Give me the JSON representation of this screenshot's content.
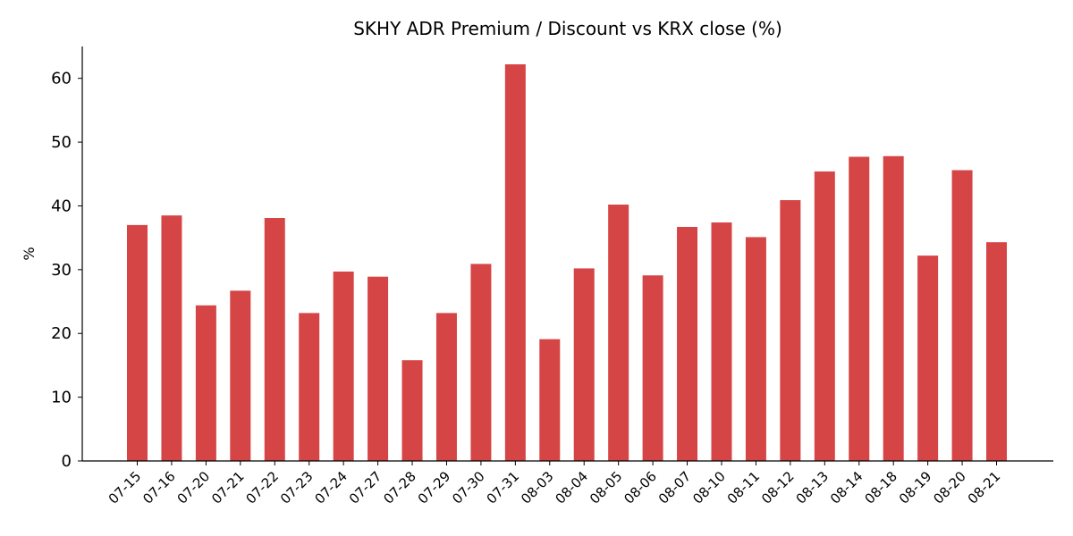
{
  "chart_data": {
    "type": "bar",
    "title": "SKHY ADR Premium / Discount vs KRX close (%)",
    "xlabel": "",
    "ylabel": "%",
    "ylim": [
      0,
      65
    ],
    "yticks": [
      0,
      10,
      20,
      30,
      40,
      50,
      60
    ],
    "grid": false,
    "color": "#d64545",
    "categories": [
      "07-15",
      "07-16",
      "07-20",
      "07-21",
      "07-22",
      "07-23",
      "07-24",
      "07-27",
      "07-28",
      "07-29",
      "07-30",
      "07-31",
      "08-03",
      "08-04",
      "08-05",
      "08-06",
      "08-07",
      "08-10",
      "08-11",
      "08-12",
      "08-13",
      "08-14",
      "08-18",
      "08-19",
      "08-20",
      "08-21"
    ],
    "values": [
      37.0,
      38.5,
      24.4,
      26.7,
      38.1,
      23.2,
      29.7,
      28.9,
      15.8,
      23.2,
      30.9,
      62.2,
      19.1,
      30.2,
      40.2,
      29.1,
      36.7,
      37.4,
      35.1,
      40.9,
      45.4,
      47.7,
      47.8,
      32.2,
      45.6,
      34.3
    ]
  }
}
